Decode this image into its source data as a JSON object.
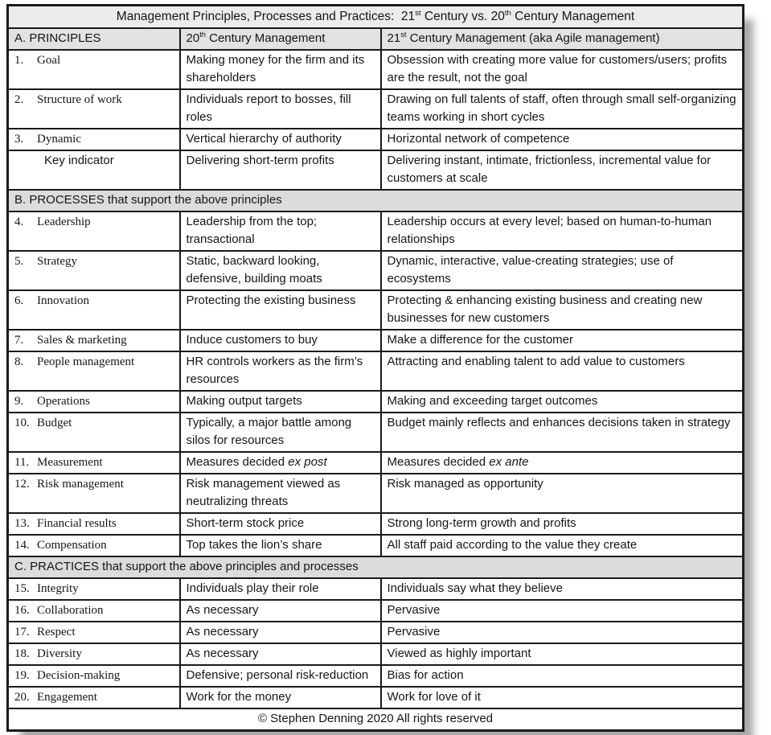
{
  "document": {
    "title": "Management Principles, Processes and Practices:  21{st} Century vs. 20{th} Century Management",
    "header": {
      "col1": "A. PRINCIPLES",
      "col2": "20{th} Century Management",
      "col3": "21{st} Century Management (aka Agile management)"
    },
    "sections": [
      {
        "header": "",
        "rows": [
          {
            "num": "1.",
            "label": "Goal",
            "c20": "Making money for the firm and its shareholders",
            "c21": "Obsession with creating more value for customers/users; profits are the result, not the goal"
          },
          {
            "num": "2.",
            "label": "Structure of work",
            "c20": "Individuals report to bosses, fill roles",
            "c21": "Drawing on full talents of staff, often through small self-organizing teams working in short cycles"
          },
          {
            "num": "3.",
            "label": "Dynamic",
            "c20": "Vertical hierarchy of authority",
            "c21": "Horizontal network of competence"
          },
          {
            "num": "",
            "label": "Key indicator",
            "c20": "Delivering short-term profits",
            "c21": "Delivering instant, intimate, frictionless, incremental value for customers at scale"
          }
        ]
      },
      {
        "header": "B. PROCESSES that support the above principles",
        "rows": [
          {
            "num": "4.",
            "label": "Leadership",
            "c20": "Leadership from the top; transactional",
            "c21": "Leadership occurs at every level; based on human-to-human relationships"
          },
          {
            "num": "5.",
            "label": "Strategy",
            "c20": "Static, backward looking, defensive, building moats",
            "c21": "Dynamic, interactive, value-creating strategies; use of ecosystems"
          },
          {
            "num": "6.",
            "label": "Innovation",
            "c20": "Protecting the existing business",
            "c21": "Protecting & enhancing existing business and creating new businesses for new customers"
          },
          {
            "num": "7.",
            "label": "Sales & marketing",
            "c20": "Induce customers to buy",
            "c21": "Make a difference for the customer"
          },
          {
            "num": "8.",
            "label": "People management",
            "c20": "HR controls workers as the firm’s resources",
            "c21": "Attracting and enabling talent to add value to customers"
          },
          {
            "num": "9.",
            "label": "Operations",
            "c20": "Making output targets",
            "c21": "Making and exceeding target outcomes"
          },
          {
            "num": "10.",
            "label": "Budget",
            "c20": "Typically, a major battle among silos for resources",
            "c21": "Budget mainly reflects and enhances decisions taken in strategy"
          },
          {
            "num": "11.",
            "label": "Measurement",
            "c20": "Measures decided *ex post*",
            "c21": "Measures decided *ex ante*"
          },
          {
            "num": "12.",
            "label": "Risk management",
            "c20": "Risk management viewed as neutralizing threats",
            "c21": "Risk managed as opportunity"
          },
          {
            "num": "13.",
            "label": "Financial results",
            "c20": "Short-term stock price",
            "c21": "Strong long-term growth and profits"
          },
          {
            "num": "14.",
            "label": "Compensation",
            "c20": "Top takes the lion’s share",
            "c21": "All staff paid according to the value they create"
          }
        ]
      },
      {
        "header": "C. PRACTICES that support the above principles and processes",
        "rows": [
          {
            "num": "15.",
            "label": "Integrity",
            "c20": "Individuals play their role",
            "c21": "Individuals say what they believe"
          },
          {
            "num": "16.",
            "label": "Collaboration",
            "c20": "As necessary",
            "c21": "Pervasive"
          },
          {
            "num": "17.",
            "label": "Respect",
            "c20": "As necessary",
            "c21": "Pervasive"
          },
          {
            "num": "18.",
            "label": "Diversity",
            "c20": "As necessary",
            "c21": "Viewed as highly important"
          },
          {
            "num": "19.",
            "label": "Decision-making",
            "c20": "Defensive; personal risk-reduction",
            "c21": "Bias for action"
          },
          {
            "num": "20.",
            "label": "Engagement",
            "c20": "Work for the money",
            "c21": "Work for love of it"
          }
        ]
      }
    ],
    "footer": "© Stephen Denning 2020 All rights reserved"
  },
  "colors": {
    "title_bg": "#ececec",
    "header_bg": "#e2e2e2",
    "section_bg": "#dcdcdc",
    "border": "#1a1a1a",
    "text": "#151515"
  }
}
